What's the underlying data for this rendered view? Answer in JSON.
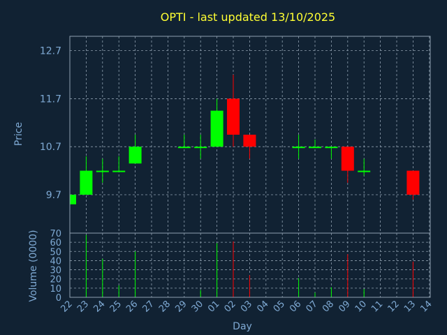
{
  "title": "OPTI - last updated 13/10/2025",
  "colors": {
    "background": "#112233",
    "grid": "#8fa0b0",
    "axis_text": "#7faad4",
    "title": "#ffff33",
    "up": "#00ff00",
    "down": "#ff0000"
  },
  "chart_data": {
    "type": "candlestick",
    "xlabel": "Day",
    "ylabel": "Price",
    "volume_label": "Volume (0000)",
    "grid": true,
    "ylim": [
      8.9,
      13.0
    ],
    "price_ticks": [
      "12.7",
      "11.7",
      "10.7",
      "9.7"
    ],
    "volume_ylim": [
      0,
      70
    ],
    "volume_ticks": [
      "0",
      "10",
      "20",
      "30",
      "40",
      "50",
      "60",
      "70"
    ],
    "days": [
      "22",
      "23",
      "24",
      "25",
      "26",
      "27",
      "28",
      "29",
      "30",
      "01",
      "02",
      "03",
      "04",
      "05",
      "06",
      "07",
      "08",
      "09",
      "10",
      "11",
      "12",
      "13",
      "14"
    ],
    "candles": [
      {
        "day": "22",
        "open": 9.5,
        "close": 9.7,
        "high": 9.7,
        "low": 9.5
      },
      {
        "day": "23",
        "open": 9.7,
        "close": 10.2,
        "high": 10.5,
        "low": 9.7
      },
      {
        "day": "24",
        "open": 10.2,
        "close": 10.2,
        "high": 10.45,
        "low": 9.95
      },
      {
        "day": "25",
        "open": 10.2,
        "close": 10.2,
        "high": 10.5,
        "low": 10.2
      },
      {
        "day": "26",
        "open": 10.35,
        "close": 10.7,
        "high": 10.95,
        "low": 10.35
      },
      {
        "day": "29",
        "open": 10.7,
        "close": 10.7,
        "high": 10.95,
        "low": 10.7
      },
      {
        "day": "30",
        "open": 10.7,
        "close": 10.7,
        "high": 10.95,
        "low": 10.45
      },
      {
        "day": "01",
        "open": 10.7,
        "close": 11.45,
        "high": 11.7,
        "low": 10.7
      },
      {
        "day": "02",
        "open": 11.7,
        "close": 10.95,
        "high": 12.2,
        "low": 10.7
      },
      {
        "day": "03",
        "open": 10.95,
        "close": 10.7,
        "high": 10.95,
        "low": 10.45
      },
      {
        "day": "06",
        "open": 10.7,
        "close": 10.7,
        "high": 10.95,
        "low": 10.45
      },
      {
        "day": "07",
        "open": 10.7,
        "close": 10.7,
        "high": 10.85,
        "low": 10.7
      },
      {
        "day": "08",
        "open": 10.7,
        "close": 10.7,
        "high": 10.7,
        "low": 10.45
      },
      {
        "day": "09",
        "open": 10.7,
        "close": 10.2,
        "high": 10.7,
        "low": 9.95
      },
      {
        "day": "10",
        "open": 10.2,
        "close": 10.2,
        "high": 10.45,
        "low": 10.1
      },
      {
        "day": "13",
        "open": 10.2,
        "close": 9.7,
        "high": 10.2,
        "low": 9.6
      }
    ],
    "volume": [
      {
        "day": "23",
        "value": 68,
        "dir": "up"
      },
      {
        "day": "24",
        "value": 42,
        "dir": "up"
      },
      {
        "day": "25",
        "value": 13,
        "dir": "up"
      },
      {
        "day": "26",
        "value": 50,
        "dir": "up"
      },
      {
        "day": "30",
        "value": 8,
        "dir": "up"
      },
      {
        "day": "01",
        "value": 59,
        "dir": "up"
      },
      {
        "day": "02",
        "value": 61,
        "dir": "down"
      },
      {
        "day": "03",
        "value": 24,
        "dir": "down"
      },
      {
        "day": "06",
        "value": 21,
        "dir": "up"
      },
      {
        "day": "07",
        "value": 5,
        "dir": "up"
      },
      {
        "day": "08",
        "value": 11,
        "dir": "up"
      },
      {
        "day": "09",
        "value": 47,
        "dir": "down"
      },
      {
        "day": "10",
        "value": 9,
        "dir": "up"
      },
      {
        "day": "13",
        "value": 39,
        "dir": "down"
      }
    ]
  }
}
